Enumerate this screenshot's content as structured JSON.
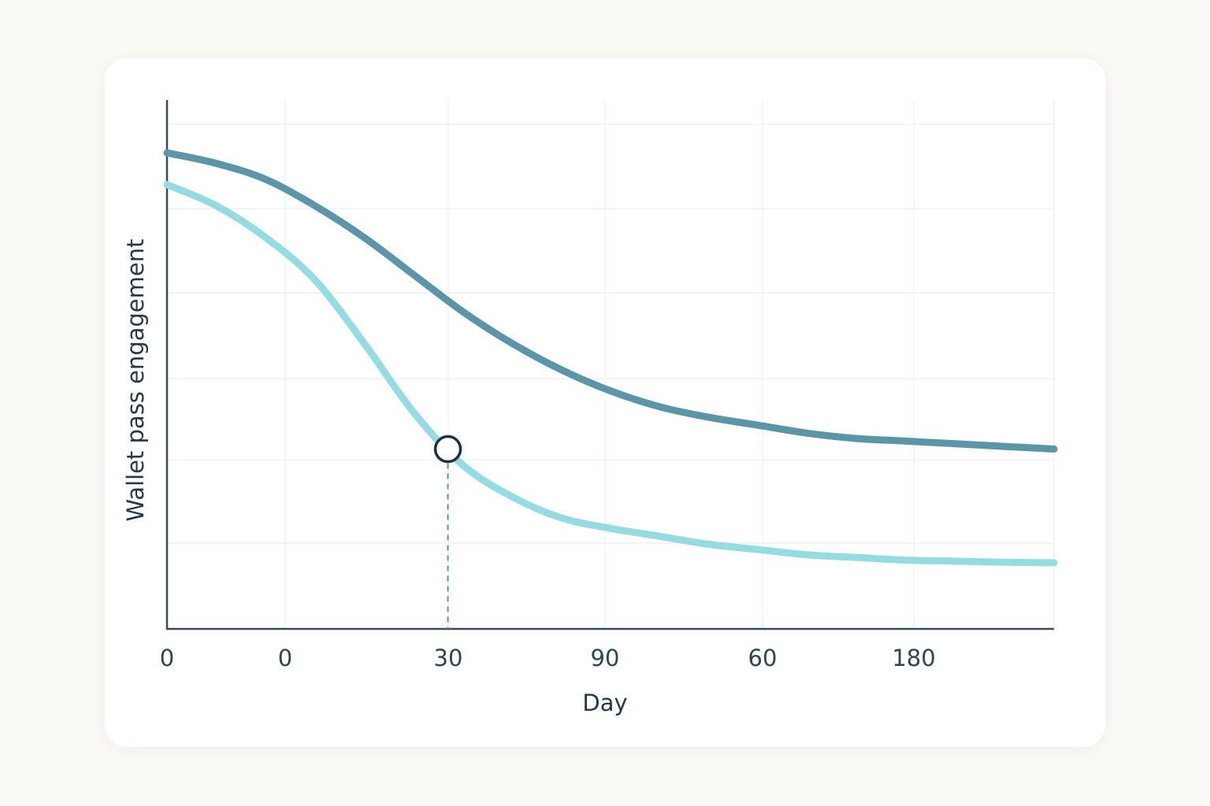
{
  "chart_data": {
    "type": "line",
    "xlabel": "Day",
    "ylabel": "Wallet pass engagement",
    "x_tick_labels": [
      "0",
      "0",
      "30",
      "90",
      "60",
      "180"
    ],
    "y_tick_labels": [],
    "grid": true,
    "legend": "none",
    "x": [
      0,
      10,
      20,
      30,
      40,
      50,
      60,
      70,
      80,
      90,
      100,
      110,
      120,
      130,
      140,
      150,
      160,
      170,
      180
    ],
    "series": [
      {
        "color": "#5b95a8",
        "values": [
          0.9,
          0.88,
          0.85,
          0.8,
          0.74,
          0.67,
          0.6,
          0.54,
          0.49,
          0.45,
          0.42,
          0.4,
          0.385,
          0.37,
          0.36,
          0.355,
          0.35,
          0.345,
          0.34
        ]
      },
      {
        "color": "#95dce2",
        "values": [
          0.84,
          0.8,
          0.74,
          0.66,
          0.54,
          0.41,
          0.31,
          0.25,
          0.21,
          0.19,
          0.175,
          0.16,
          0.15,
          0.14,
          0.135,
          0.13,
          0.128,
          0.126,
          0.125
        ]
      }
    ],
    "annotations": [
      {
        "type": "marker",
        "series": 1,
        "x": 57,
        "style": "hollow-circle"
      },
      {
        "type": "vline",
        "x": 57,
        "style": "dashed"
      }
    ],
    "colors": {
      "axis": "#3a4c5a",
      "grid": "#ebeef0",
      "marker_stroke": "#1e3140",
      "guide": "#5b95a8"
    }
  }
}
